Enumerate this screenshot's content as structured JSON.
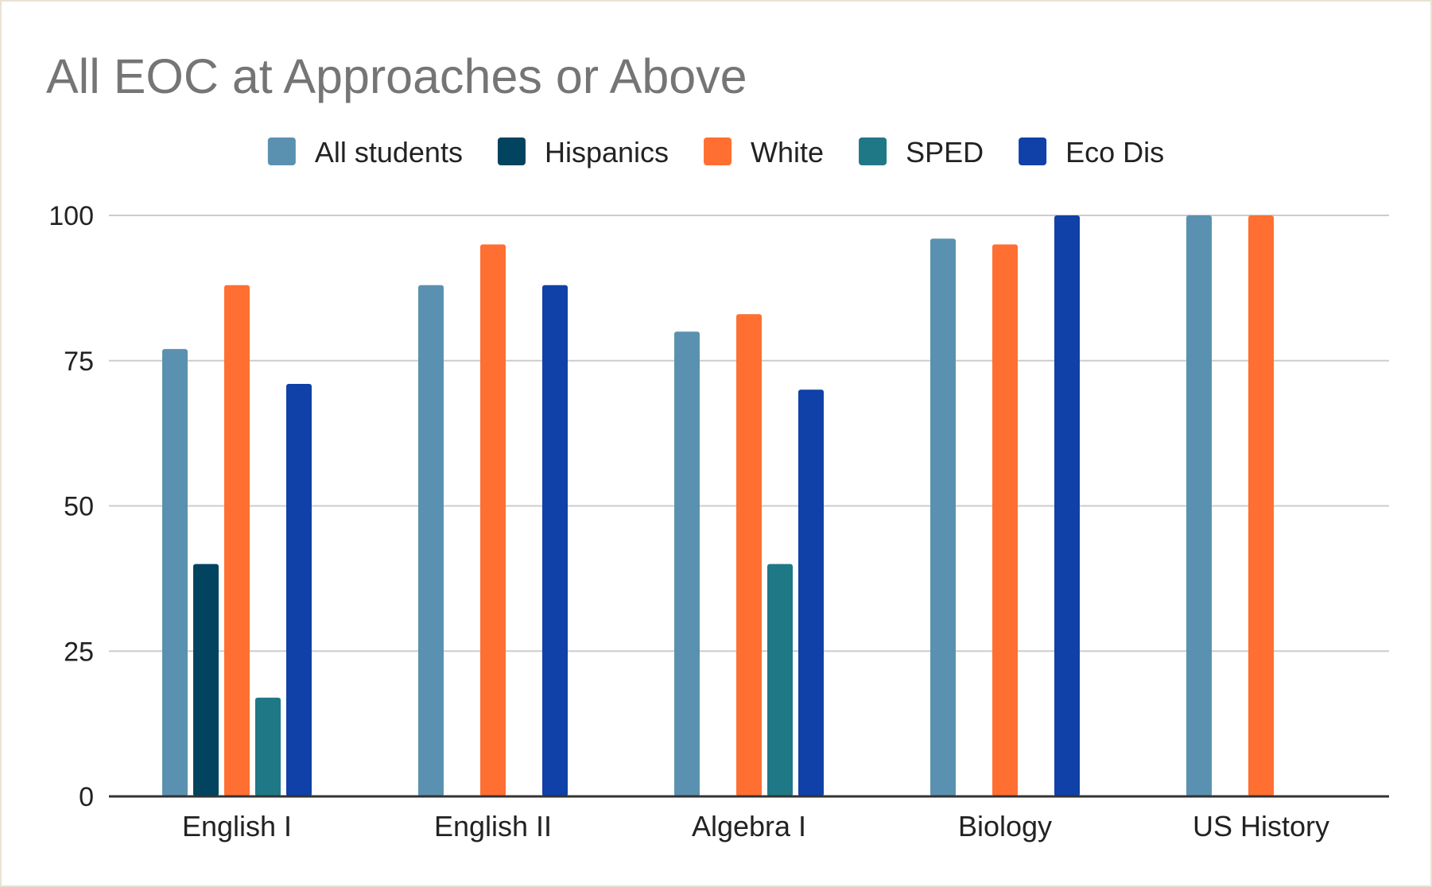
{
  "chart_data": {
    "type": "bar",
    "title": "All EOC at Approaches or Above",
    "xlabel": "",
    "ylabel": "",
    "categories": [
      "English I",
      "English II",
      "Algebra I",
      "Biology",
      "US History"
    ],
    "ylim": [
      0,
      100
    ],
    "yticks": [
      0,
      25,
      50,
      75,
      100
    ],
    "grid": true,
    "legend_position": "top",
    "series": [
      {
        "name": "All students",
        "color": "#5b91b0",
        "values": [
          77,
          88,
          80,
          96,
          100
        ]
      },
      {
        "name": "Hispanics",
        "color": "#024360",
        "values": [
          40,
          null,
          null,
          null,
          null
        ]
      },
      {
        "name": "White",
        "color": "#ff6f31",
        "values": [
          88,
          95,
          83,
          95,
          100
        ]
      },
      {
        "name": "SPED",
        "color": "#1f7886",
        "values": [
          17,
          null,
          40,
          null,
          null
        ]
      },
      {
        "name": "Eco Dis",
        "color": "#1041a8",
        "values": [
          71,
          88,
          70,
          100,
          null
        ]
      }
    ]
  }
}
